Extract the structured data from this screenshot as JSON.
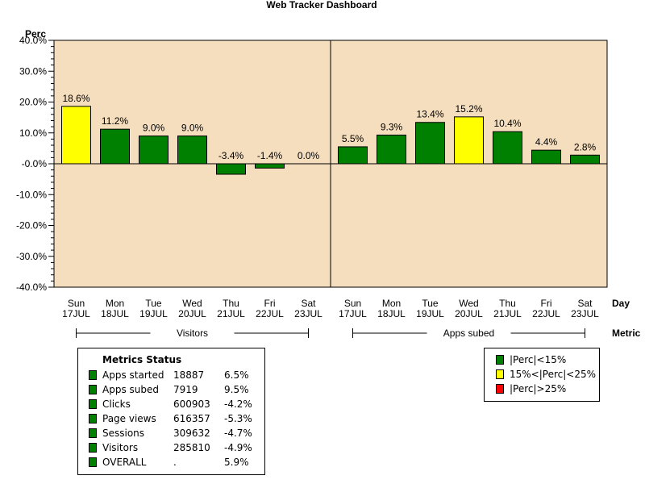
{
  "chart_data": {
    "type": "bar",
    "title": "Web Tracker Dashboard",
    "ylabel": "Perc",
    "xlabel": "Day",
    "group_axis_label": "Metric",
    "ylim": [
      -40,
      40
    ],
    "yticks": [
      "40.0%",
      "30.0%",
      "20.0%",
      "10.0%",
      "-0.0%",
      "-10.0%",
      "-20.0%",
      "-30.0%",
      "-40.0%"
    ],
    "background_color": "#F5DEBE",
    "grid": false,
    "panels": [
      {
        "name": "Visitors",
        "categories": [
          [
            "Sun",
            "17JUL"
          ],
          [
            "Mon",
            "18JUL"
          ],
          [
            "Tue",
            "19JUL"
          ],
          [
            "Wed",
            "20JUL"
          ],
          [
            "Thu",
            "21JUL"
          ],
          [
            "Fri",
            "22JUL"
          ],
          [
            "Sat",
            "23JUL"
          ]
        ],
        "values": [
          18.6,
          11.2,
          9.0,
          9.0,
          -3.4,
          -1.4,
          0.0
        ],
        "labels": [
          "18.6%",
          "11.2%",
          "9.0%",
          "9.0%",
          "-3.4%",
          "-1.4%",
          "0.0%"
        ]
      },
      {
        "name": "Apps subed",
        "categories": [
          [
            "Sun",
            "17JUL"
          ],
          [
            "Mon",
            "18JUL"
          ],
          [
            "Tue",
            "19JUL"
          ],
          [
            "Wed",
            "20JUL"
          ],
          [
            "Thu",
            "21JUL"
          ],
          [
            "Fri",
            "22JUL"
          ],
          [
            "Sat",
            "23JUL"
          ]
        ],
        "values": [
          5.5,
          9.3,
          13.4,
          15.2,
          10.4,
          4.4,
          2.8
        ],
        "labels": [
          "5.5%",
          "9.3%",
          "13.4%",
          "15.2%",
          "10.4%",
          "4.4%",
          "2.8%"
        ]
      }
    ],
    "bar_color_rule": [
      {
        "label": "|Perc|<15%",
        "color": "#008000"
      },
      {
        "label": "15%<|Perc|<25%",
        "color": "#FFFF00"
      },
      {
        "label": "|Perc|>25%",
        "color": "#FF0000"
      }
    ]
  },
  "metrics_status": {
    "title": "Metrics Status",
    "rows": [
      {
        "name": "Apps started",
        "count": "18887",
        "perc": "6.5%",
        "color": "#008000"
      },
      {
        "name": "Apps subed",
        "count": "7919",
        "perc": "9.5%",
        "color": "#008000"
      },
      {
        "name": "Clicks",
        "count": "600903",
        "perc": "-4.2%",
        "color": "#008000"
      },
      {
        "name": "Page views",
        "count": "616357",
        "perc": "-5.3%",
        "color": "#008000"
      },
      {
        "name": "Sessions",
        "count": "309632",
        "perc": "-4.7%",
        "color": "#008000"
      },
      {
        "name": "Visitors",
        "count": "285810",
        "perc": "-4.9%",
        "color": "#008000"
      },
      {
        "name": "OVERALL",
        "count": ".",
        "perc": "5.9%",
        "color": "#008000"
      }
    ]
  }
}
